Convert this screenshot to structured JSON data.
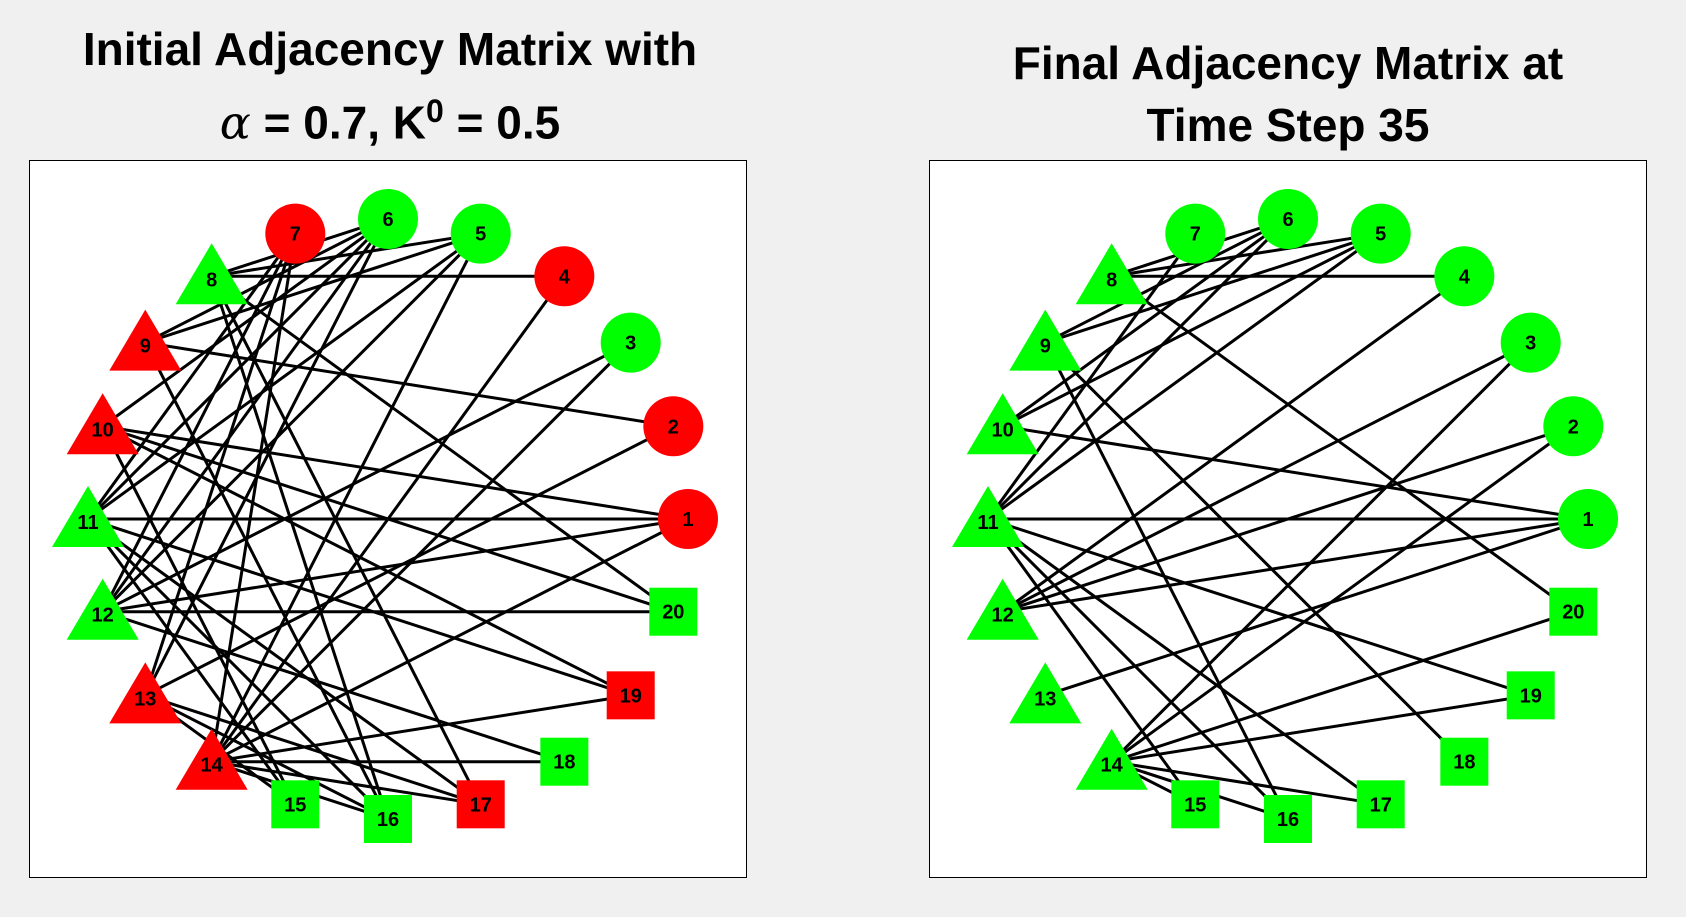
{
  "titles": {
    "left_line1": "Initial Adjacency Matrix with",
    "left_alpha_symbol": "α",
    "left_alpha_text": " = 0.7, K",
    "left_superscript": "0",
    "left_k_text": " = 0.5",
    "right_line1": "Final Adjacency Matrix at",
    "right_line2": "Time Step 35"
  },
  "colors": {
    "red": "#ff0000",
    "green": "#00ff00",
    "edge": "#000000"
  },
  "panels": [
    {
      "id": "initial",
      "nodes": [
        {
          "id": 1,
          "label": "1",
          "shape": "circle",
          "color": "red"
        },
        {
          "id": 2,
          "label": "2",
          "shape": "circle",
          "color": "red"
        },
        {
          "id": 3,
          "label": "3",
          "shape": "circle",
          "color": "green"
        },
        {
          "id": 4,
          "label": "4",
          "shape": "circle",
          "color": "red"
        },
        {
          "id": 5,
          "label": "5",
          "shape": "circle",
          "color": "green"
        },
        {
          "id": 6,
          "label": "6",
          "shape": "circle",
          "color": "green"
        },
        {
          "id": 7,
          "label": "7",
          "shape": "circle",
          "color": "red"
        },
        {
          "id": 8,
          "label": "8",
          "shape": "triangle",
          "color": "green"
        },
        {
          "id": 9,
          "label": "9",
          "shape": "triangle",
          "color": "red"
        },
        {
          "id": 10,
          "label": "10",
          "shape": "triangle",
          "color": "red"
        },
        {
          "id": 11,
          "label": "11",
          "shape": "triangle",
          "color": "green"
        },
        {
          "id": 12,
          "label": "12",
          "shape": "triangle",
          "color": "green"
        },
        {
          "id": 13,
          "label": "13",
          "shape": "triangle",
          "color": "red"
        },
        {
          "id": 14,
          "label": "14",
          "shape": "triangle",
          "color": "red"
        },
        {
          "id": 15,
          "label": "15",
          "shape": "square",
          "color": "green"
        },
        {
          "id": 16,
          "label": "16",
          "shape": "square",
          "color": "green"
        },
        {
          "id": 17,
          "label": "17",
          "shape": "square",
          "color": "red"
        },
        {
          "id": 18,
          "label": "18",
          "shape": "square",
          "color": "green"
        },
        {
          "id": 19,
          "label": "19",
          "shape": "square",
          "color": "red"
        },
        {
          "id": 20,
          "label": "20",
          "shape": "square",
          "color": "green"
        }
      ],
      "edges": [
        [
          8,
          4
        ],
        [
          8,
          5
        ],
        [
          8,
          6
        ],
        [
          8,
          20
        ],
        [
          8,
          17
        ],
        [
          8,
          16
        ],
        [
          9,
          5
        ],
        [
          9,
          6
        ],
        [
          9,
          2
        ],
        [
          9,
          16
        ],
        [
          10,
          6
        ],
        [
          10,
          1
        ],
        [
          10,
          20
        ],
        [
          10,
          19
        ],
        [
          10,
          15
        ],
        [
          11,
          1
        ],
        [
          11,
          5
        ],
        [
          11,
          6
        ],
        [
          11,
          7
        ],
        [
          11,
          19
        ],
        [
          11,
          16
        ],
        [
          11,
          17
        ],
        [
          11,
          15
        ],
        [
          12,
          20
        ],
        [
          12,
          3
        ],
        [
          12,
          6
        ],
        [
          12,
          5
        ],
        [
          12,
          1
        ],
        [
          12,
          18
        ],
        [
          12,
          7
        ],
        [
          13,
          2
        ],
        [
          13,
          7
        ],
        [
          13,
          6
        ],
        [
          13,
          15
        ],
        [
          13,
          16
        ],
        [
          13,
          17
        ],
        [
          14,
          1
        ],
        [
          14,
          5
        ],
        [
          14,
          4
        ],
        [
          14,
          7
        ],
        [
          14,
          18
        ],
        [
          14,
          19
        ],
        [
          14,
          3
        ],
        [
          14,
          16
        ],
        [
          14,
          17
        ]
      ]
    },
    {
      "id": "final",
      "nodes": [
        {
          "id": 1,
          "label": "1",
          "shape": "circle",
          "color": "green"
        },
        {
          "id": 2,
          "label": "2",
          "shape": "circle",
          "color": "green"
        },
        {
          "id": 3,
          "label": "3",
          "shape": "circle",
          "color": "green"
        },
        {
          "id": 4,
          "label": "4",
          "shape": "circle",
          "color": "green"
        },
        {
          "id": 5,
          "label": "5",
          "shape": "circle",
          "color": "green"
        },
        {
          "id": 6,
          "label": "6",
          "shape": "circle",
          "color": "green"
        },
        {
          "id": 7,
          "label": "7",
          "shape": "circle",
          "color": "green"
        },
        {
          "id": 8,
          "label": "8",
          "shape": "triangle",
          "color": "green"
        },
        {
          "id": 9,
          "label": "9",
          "shape": "triangle",
          "color": "green"
        },
        {
          "id": 10,
          "label": "10",
          "shape": "triangle",
          "color": "green"
        },
        {
          "id": 11,
          "label": "11",
          "shape": "triangle",
          "color": "green"
        },
        {
          "id": 12,
          "label": "12",
          "shape": "triangle",
          "color": "green"
        },
        {
          "id": 13,
          "label": "13",
          "shape": "triangle",
          "color": "green"
        },
        {
          "id": 14,
          "label": "14",
          "shape": "triangle",
          "color": "green"
        },
        {
          "id": 15,
          "label": "15",
          "shape": "square",
          "color": "green"
        },
        {
          "id": 16,
          "label": "16",
          "shape": "square",
          "color": "green"
        },
        {
          "id": 17,
          "label": "17",
          "shape": "square",
          "color": "green"
        },
        {
          "id": 18,
          "label": "18",
          "shape": "square",
          "color": "green"
        },
        {
          "id": 19,
          "label": "19",
          "shape": "square",
          "color": "green"
        },
        {
          "id": 20,
          "label": "20",
          "shape": "square",
          "color": "green"
        }
      ],
      "edges": [
        [
          8,
          4
        ],
        [
          8,
          5
        ],
        [
          8,
          6
        ],
        [
          8,
          20
        ],
        [
          9,
          5
        ],
        [
          9,
          6
        ],
        [
          9,
          18
        ],
        [
          9,
          16
        ],
        [
          10,
          1
        ],
        [
          10,
          6
        ],
        [
          10,
          5
        ],
        [
          11,
          1
        ],
        [
          11,
          5
        ],
        [
          11,
          6
        ],
        [
          11,
          7
        ],
        [
          11,
          19
        ],
        [
          11,
          15
        ],
        [
          11,
          16
        ],
        [
          11,
          17
        ],
        [
          12,
          1
        ],
        [
          12,
          4
        ],
        [
          12,
          2
        ],
        [
          12,
          3
        ],
        [
          13,
          1
        ],
        [
          14,
          19
        ],
        [
          14,
          20
        ],
        [
          14,
          3
        ],
        [
          14,
          2
        ],
        [
          14,
          15
        ],
        [
          14,
          16
        ],
        [
          14,
          17
        ]
      ]
    }
  ]
}
